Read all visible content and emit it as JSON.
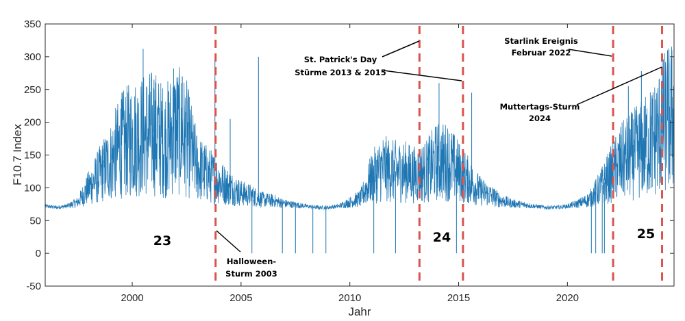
{
  "chart_data": {
    "type": "line",
    "xlabel": "Jahr",
    "ylabel": "F10.7 Index",
    "xlim": [
      1996.0,
      2024.9
    ],
    "ylim": [
      -50,
      350
    ],
    "xticks": [
      2000,
      2005,
      2010,
      2015,
      2020
    ],
    "yticks": [
      -50,
      0,
      50,
      100,
      150,
      200,
      250,
      300,
      350
    ],
    "grid": false,
    "series_color": "#1f77b4",
    "event_line_color": "#d9534f",
    "series": [
      {
        "x": [
          1996.0,
          1996.5,
          1997.0,
          1997.5,
          1998.0,
          1998.5,
          1999.0,
          1999.5,
          2000.0,
          2000.5,
          2001.0,
          2001.5,
          2002.0,
          2002.5,
          2003.0,
          2003.5,
          2004.0,
          2004.5,
          2005.0,
          2005.5,
          2006.0,
          2006.5,
          2007.0,
          2007.5,
          2008.0,
          2008.5,
          2009.0,
          2009.5,
          2010.0,
          2010.5,
          2011.0,
          2011.5,
          2012.0,
          2012.5,
          2013.0,
          2013.5,
          2014.0,
          2014.5,
          2015.0,
          2015.5,
          2016.0,
          2016.5,
          2017.0,
          2017.5,
          2018.0,
          2018.5,
          2019.0,
          2019.5,
          2020.0,
          2020.5,
          2021.0,
          2021.5,
          2022.0,
          2022.5,
          2023.0,
          2023.5,
          2024.0,
          2024.5,
          2024.9
        ],
        "values": [
          72,
          70,
          72,
          78,
          100,
          120,
          140,
          165,
          175,
          180,
          185,
          170,
          190,
          175,
          130,
          120,
          110,
          100,
          92,
          88,
          82,
          80,
          76,
          74,
          72,
          70,
          70,
          72,
          78,
          84,
          115,
          130,
          125,
          125,
          120,
          125,
          140,
          140,
          125,
          110,
          95,
          88,
          80,
          76,
          74,
          72,
          70,
          70,
          72,
          76,
          82,
          100,
          120,
          140,
          150,
          160,
          175,
          200,
          210
        ]
      }
    ],
    "spikes": [
      {
        "x": 1999.5,
        "value": 235
      },
      {
        "x": 2000.5,
        "value": 312
      },
      {
        "x": 2001.0,
        "value": 265
      },
      {
        "x": 2001.9,
        "value": 282
      },
      {
        "x": 2002.3,
        "value": 270
      },
      {
        "x": 2003.8,
        "value": 295
      },
      {
        "x": 2004.5,
        "value": 205
      },
      {
        "x": 2005.5,
        "value": 0
      },
      {
        "x": 2005.8,
        "value": 300
      },
      {
        "x": 2006.9,
        "value": 0
      },
      {
        "x": 2007.5,
        "value": 0
      },
      {
        "x": 2008.3,
        "value": 0
      },
      {
        "x": 2008.9,
        "value": 0
      },
      {
        "x": 2011.1,
        "value": 0
      },
      {
        "x": 2012.1,
        "value": 0
      },
      {
        "x": 2014.1,
        "value": 260
      },
      {
        "x": 2014.9,
        "value": 0
      },
      {
        "x": 2015.6,
        "value": 245
      },
      {
        "x": 2021.1,
        "value": 0
      },
      {
        "x": 2021.3,
        "value": 0
      },
      {
        "x": 2021.6,
        "value": 0
      },
      {
        "x": 2021.7,
        "value": 0
      },
      {
        "x": 2022.8,
        "value": 255
      },
      {
        "x": 2023.4,
        "value": 278
      },
      {
        "x": 2024.6,
        "value": 310
      },
      {
        "x": 2024.8,
        "value": 310
      }
    ],
    "event_lines": [
      2003.83,
      2013.2,
      2015.2,
      2022.1,
      2024.35
    ],
    "annotations": [
      {
        "lines": [
          "Halloween-",
          "Sturm 2003"
        ]
      },
      {
        "lines": [
          "St. Patrick's Day",
          "Stürme 2013 & 2015"
        ]
      },
      {
        "lines": [
          "Starlink Ereignis",
          "Februar 2022"
        ]
      },
      {
        "lines": [
          "Muttertags-Sturm",
          "2024"
        ]
      }
    ],
    "cycle_labels": [
      "23",
      "24",
      "25"
    ]
  }
}
